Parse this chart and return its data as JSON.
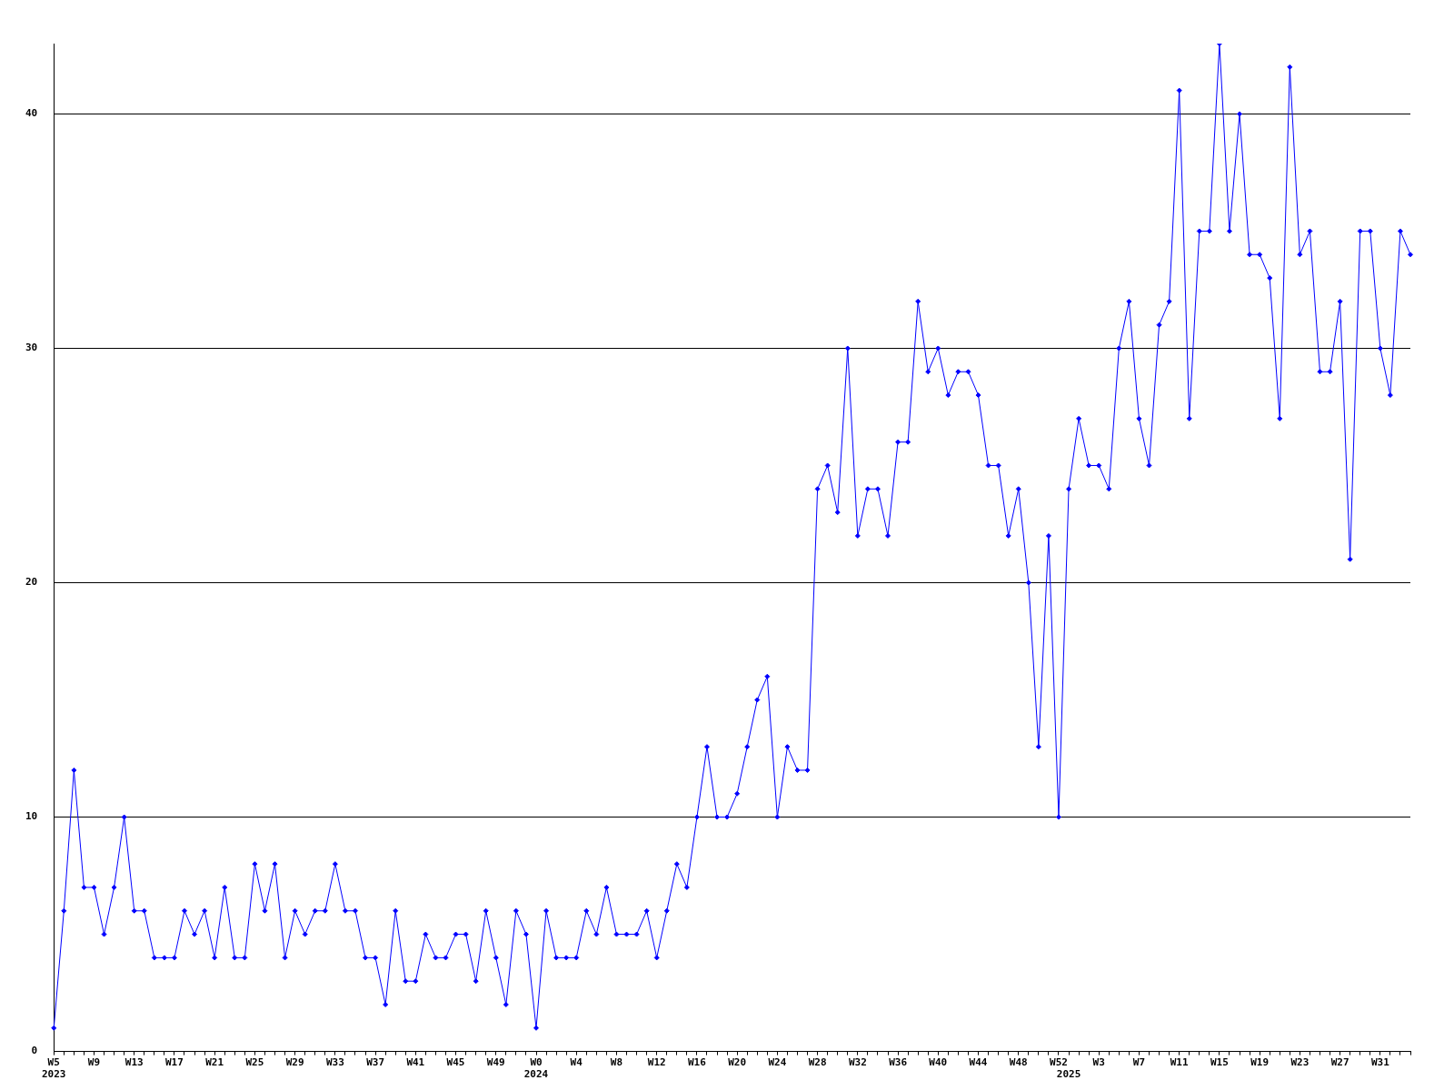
{
  "chart_data": {
    "type": "line",
    "color": "#0000ff",
    "marker": "diamond",
    "grid": "y",
    "ylim": [
      0,
      43
    ],
    "yticks": [
      0,
      10,
      20,
      30,
      40
    ],
    "categories": [
      "W5\n2023",
      null,
      null,
      null,
      "W9",
      null,
      null,
      null,
      "W13",
      null,
      null,
      null,
      "W17",
      null,
      null,
      null,
      "W21",
      null,
      null,
      null,
      "W25",
      null,
      null,
      null,
      "W29",
      null,
      null,
      null,
      "W33",
      null,
      null,
      null,
      "W37",
      null,
      null,
      null,
      "W41",
      null,
      null,
      null,
      "W45",
      null,
      null,
      null,
      "W49",
      null,
      null,
      null,
      "W0\n2024",
      null,
      null,
      null,
      "W4",
      null,
      null,
      null,
      "W8",
      null,
      null,
      null,
      "W12",
      null,
      null,
      null,
      "W16",
      null,
      null,
      null,
      "W20",
      null,
      null,
      null,
      "W24",
      null,
      null,
      null,
      "W28",
      null,
      null,
      null,
      "W32",
      null,
      null,
      null,
      "W36",
      null,
      null,
      null,
      "W40",
      null,
      null,
      null,
      "W44",
      null,
      null,
      null,
      "W48",
      null,
      null,
      null,
      "W52",
      "\n2025",
      null,
      null,
      "W3",
      null,
      null,
      null,
      "W7",
      null,
      null,
      null,
      "W11",
      null,
      null,
      null,
      "W15",
      null,
      null,
      null,
      "W19",
      null,
      null,
      null,
      "W23",
      null,
      null,
      null,
      "W27",
      null,
      null,
      null,
      "W31",
      null,
      null,
      null
    ],
    "values": [
      1,
      6,
      12,
      7,
      7,
      5,
      7,
      10,
      6,
      6,
      4,
      4,
      4,
      6,
      5,
      6,
      4,
      7,
      4,
      4,
      8,
      6,
      8,
      4,
      6,
      5,
      6,
      6,
      8,
      6,
      6,
      4,
      4,
      2,
      6,
      3,
      3,
      5,
      4,
      4,
      5,
      5,
      3,
      6,
      4,
      2,
      6,
      5,
      1,
      6,
      4,
      4,
      4,
      6,
      5,
      7,
      5,
      5,
      5,
      6,
      4,
      6,
      8,
      7,
      10,
      13,
      10,
      10,
      11,
      13,
      15,
      16,
      10,
      13,
      12,
      12,
      24,
      25,
      23,
      30,
      22,
      24,
      24,
      22,
      26,
      26,
      32,
      29,
      30,
      28,
      29,
      29,
      28,
      25,
      25,
      22,
      24,
      20,
      13,
      22,
      10,
      24,
      27,
      25,
      25,
      24,
      30,
      32,
      27,
      25,
      31,
      32,
      41,
      27,
      35,
      35,
      43,
      35,
      40,
      34,
      34,
      33,
      27,
      42,
      34,
      35,
      29,
      29,
      32,
      21,
      35,
      35,
      30,
      28,
      35,
      34
    ]
  }
}
